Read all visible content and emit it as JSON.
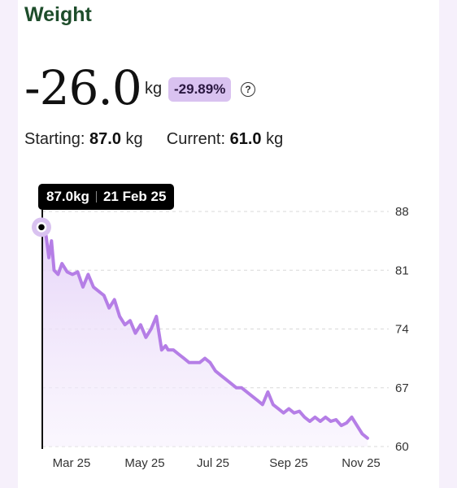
{
  "header": {
    "title": "Weight"
  },
  "summary": {
    "change_value": "-26.0",
    "change_unit": "kg",
    "change_percent": "-29.89%",
    "help_glyph": "?"
  },
  "stats": {
    "starting_label": "Starting:",
    "starting_value": "87.0",
    "starting_unit": "kg",
    "current_label": "Current:",
    "current_value": "61.0",
    "current_unit": "kg"
  },
  "tooltip": {
    "value": "87.0kg",
    "date": "21 Feb 25"
  },
  "colors": {
    "line": "#b57ee6",
    "fill": "#ede0f9",
    "accent": "#d9c2f0",
    "title": "#1e4d2b"
  },
  "chart_data": {
    "type": "area",
    "x_ticks": [
      "Mar 25",
      "May 25",
      "Jul 25",
      "Sep 25",
      "Nov 25"
    ],
    "y_ticks": [
      88,
      81,
      74,
      67,
      60
    ],
    "ylim": [
      60,
      88
    ],
    "xlim_days": "2025-02-21 to 2025-11-01",
    "series": [
      {
        "x": [
          "2025-02-21",
          "2025-02-24",
          "2025-02-26",
          "2025-02-28",
          "2025-03-02",
          "2025-03-05",
          "2025-03-08",
          "2025-03-12",
          "2025-03-16",
          "2025-03-20",
          "2025-03-24",
          "2025-03-28",
          "2025-04-01",
          "2025-04-05",
          "2025-04-09",
          "2025-04-13",
          "2025-04-17",
          "2025-04-21",
          "2025-04-25",
          "2025-04-29",
          "2025-05-03",
          "2025-05-07",
          "2025-05-11",
          "2025-05-15",
          "2025-05-19",
          "2025-05-23",
          "2025-05-26",
          "2025-05-28",
          "2025-06-01",
          "2025-06-05",
          "2025-06-09",
          "2025-06-13",
          "2025-06-17",
          "2025-06-21",
          "2025-06-25",
          "2025-06-29",
          "2025-07-03",
          "2025-07-07",
          "2025-07-11",
          "2025-07-15",
          "2025-07-19",
          "2025-07-23",
          "2025-07-27",
          "2025-07-31",
          "2025-08-04",
          "2025-08-08",
          "2025-08-12",
          "2025-08-16",
          "2025-08-20",
          "2025-08-24",
          "2025-08-28",
          "2025-09-01",
          "2025-09-05",
          "2025-09-09",
          "2025-09-13",
          "2025-09-17",
          "2025-09-21",
          "2025-09-25",
          "2025-09-29",
          "2025-10-03",
          "2025-10-07",
          "2025-10-11",
          "2025-10-15",
          "2025-10-19",
          "2025-10-23",
          "2025-10-27"
        ],
        "y": [
          87.0,
          85.0,
          82.5,
          84.5,
          81.0,
          80.5,
          81.8,
          80.8,
          80.5,
          80.8,
          79.0,
          80.5,
          79.0,
          78.5,
          78.0,
          76.5,
          77.5,
          75.5,
          74.5,
          75.0,
          73.5,
          74.5,
          73.0,
          74.0,
          75.5,
          71.5,
          72.0,
          71.5,
          71.5,
          71.0,
          70.5,
          70.0,
          70.0,
          70.0,
          70.5,
          70.0,
          69.0,
          68.5,
          68.0,
          67.5,
          67.0,
          67.0,
          66.5,
          66.0,
          65.5,
          65.0,
          66.5,
          65.0,
          64.5,
          64.0,
          64.5,
          64.0,
          64.2,
          63.5,
          63.0,
          63.5,
          63.0,
          63.5,
          63.0,
          63.2,
          62.5,
          62.8,
          63.5,
          62.5,
          61.5,
          61.0
        ]
      }
    ]
  }
}
